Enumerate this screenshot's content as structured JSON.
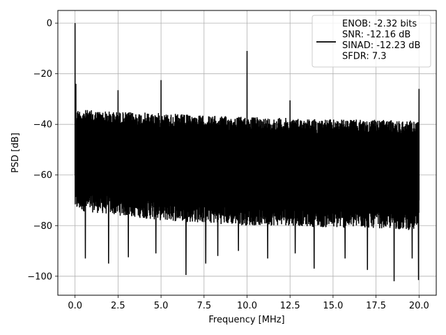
{
  "chart_data": {
    "type": "line",
    "title": "",
    "xlabel": "Frequency [MHz]",
    "ylabel": "PSD [dB]",
    "xlim": [
      -1.0,
      21.0
    ],
    "ylim": [
      -107.5,
      5.0
    ],
    "x_ticks": [
      0.0,
      2.5,
      5.0,
      7.5,
      10.0,
      12.5,
      15.0,
      17.5,
      20.0
    ],
    "x_tick_labels": [
      "0.0",
      "2.5",
      "5.0",
      "7.5",
      "10.0",
      "12.5",
      "15.0",
      "17.5",
      "20.0"
    ],
    "y_ticks": [
      0,
      -20,
      -40,
      -60,
      -80,
      -100
    ],
    "y_tick_labels": [
      "0",
      "−20",
      "−40",
      "−60",
      "−80",
      "−100"
    ],
    "grid": true,
    "legend_position": "top-right",
    "series": [
      {
        "name": "ENOB: -2.32 bits\nSNR: -12.16 dB\nSINAD: -12.23 dB\nSFDR: 7.3",
        "color": "#000000",
        "noise_floor_envelope": {
          "x": [
            0.0,
            2.5,
            5.0,
            7.5,
            10.0,
            12.5,
            15.0,
            17.5,
            20.0
          ],
          "upper": [
            -33,
            -34,
            -34.5,
            -35.5,
            -36,
            -36.5,
            -37,
            -37.2,
            -37.5
          ],
          "lower": [
            -72,
            -74,
            -76,
            -77,
            -78,
            -78,
            -79,
            -79,
            -80
          ]
        },
        "peaks": [
          {
            "x": 0.0,
            "y": 0
          },
          {
            "x": 0.05,
            "y": -24
          },
          {
            "x": 2.5,
            "y": -26.5
          },
          {
            "x": 5.0,
            "y": -22.5
          },
          {
            "x": 10.0,
            "y": -11
          },
          {
            "x": 12.5,
            "y": -30.5
          },
          {
            "x": 20.0,
            "y": -26
          }
        ],
        "dips": [
          {
            "x": 0.6,
            "y": -93
          },
          {
            "x": 1.95,
            "y": -95
          },
          {
            "x": 3.1,
            "y": -92.5
          },
          {
            "x": 4.7,
            "y": -91
          },
          {
            "x": 6.45,
            "y": -99.5
          },
          {
            "x": 7.6,
            "y": -95
          },
          {
            "x": 8.3,
            "y": -92
          },
          {
            "x": 9.5,
            "y": -90
          },
          {
            "x": 11.2,
            "y": -93
          },
          {
            "x": 12.8,
            "y": -91
          },
          {
            "x": 13.9,
            "y": -97
          },
          {
            "x": 15.7,
            "y": -93
          },
          {
            "x": 17.0,
            "y": -97.5
          },
          {
            "x": 18.55,
            "y": -102
          },
          {
            "x": 19.6,
            "y": -93
          },
          {
            "x": 19.97,
            "y": -101.5
          }
        ]
      }
    ]
  }
}
